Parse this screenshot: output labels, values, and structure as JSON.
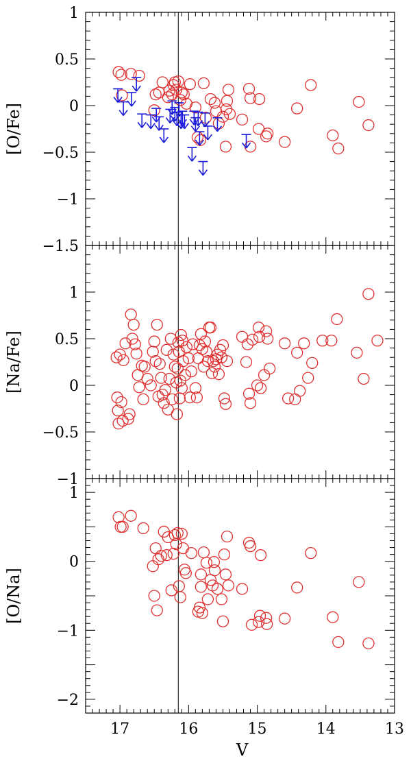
{
  "chart_data": [
    {
      "type": "scatter",
      "panel": "top",
      "ylabel": "[O/Fe]",
      "xlim": [
        17.5,
        13
      ],
      "ylim": [
        -1.5,
        1
      ],
      "y_ticks": [
        {
          "v": 1,
          "label": "1"
        },
        {
          "v": 0.5,
          "label": "0.5"
        },
        {
          "v": 0,
          "label": "0"
        },
        {
          "v": -0.5,
          "label": "−0.5"
        },
        {
          "v": -1,
          "label": "−1"
        },
        {
          "v": -1.5,
          "label": "−1.5"
        }
      ],
      "vline_x": 16.15,
      "grid": false,
      "series": [
        {
          "marker": "open-circle",
          "color": "#e03030",
          "points": [
            [
              17.02,
              0.36
            ],
            [
              16.98,
              0.33
            ],
            [
              16.97,
              0.11
            ],
            [
              16.84,
              0.34
            ],
            [
              16.72,
              0.32
            ],
            [
              16.5,
              -0.05
            ],
            [
              16.48,
              0.12
            ],
            [
              16.43,
              0.14
            ],
            [
              16.38,
              0.25
            ],
            [
              16.3,
              0.09
            ],
            [
              16.28,
              0.16
            ],
            [
              16.24,
              0.12
            ],
            [
              16.22,
              0.22
            ],
            [
              16.2,
              0.25
            ],
            [
              16.18,
              0.17
            ],
            [
              16.15,
              0.26
            ],
            [
              16.12,
              0.06
            ],
            [
              16.1,
              0.14
            ],
            [
              16.07,
              0.12
            ],
            [
              16.03,
              0.02
            ],
            [
              15.98,
              0.23
            ],
            [
              15.9,
              -0.02
            ],
            [
              15.87,
              -0.34
            ],
            [
              15.83,
              -0.37
            ],
            [
              15.78,
              0.24
            ],
            [
              15.75,
              -0.13
            ],
            [
              15.68,
              0.07
            ],
            [
              15.62,
              0.03
            ],
            [
              15.6,
              -0.06
            ],
            [
              15.56,
              -0.19
            ],
            [
              15.5,
              -0.12
            ],
            [
              15.46,
              -0.44
            ],
            [
              15.45,
              -0.04
            ],
            [
              15.44,
              0.05
            ],
            [
              15.42,
              0.17
            ],
            [
              15.4,
              -0.09
            ],
            [
              15.22,
              -0.15
            ],
            [
              15.12,
              0.18
            ],
            [
              15.1,
              0.08
            ],
            [
              15.1,
              -0.44
            ],
            [
              14.98,
              -0.25
            ],
            [
              14.97,
              0.07
            ],
            [
              14.87,
              -0.33
            ],
            [
              14.85,
              -0.3
            ],
            [
              14.6,
              -0.39
            ],
            [
              14.42,
              -0.03
            ],
            [
              14.22,
              0.22
            ],
            [
              13.9,
              -0.32
            ],
            [
              13.82,
              -0.46
            ],
            [
              13.52,
              0.04
            ],
            [
              13.38,
              -0.21
            ]
          ]
        },
        {
          "marker": "upper-limit-arrow",
          "color": "#1a1adc",
          "points": [
            [
              17.03,
              0.18
            ],
            [
              16.95,
              0.04
            ],
            [
              16.83,
              0.14
            ],
            [
              16.76,
              0.3
            ],
            [
              16.68,
              -0.09
            ],
            [
              16.55,
              -0.1
            ],
            [
              16.47,
              -0.03
            ],
            [
              16.43,
              -0.12
            ],
            [
              16.36,
              -0.25
            ],
            [
              16.27,
              -0.04
            ],
            [
              16.24,
              0.05
            ],
            [
              16.2,
              -0.02
            ],
            [
              16.17,
              -0.07
            ],
            [
              16.14,
              0.03
            ],
            [
              16.11,
              -0.1
            ],
            [
              16.09,
              -0.06
            ],
            [
              16.06,
              -0.1
            ],
            [
              15.95,
              -0.45
            ],
            [
              15.92,
              -0.06
            ],
            [
              15.9,
              -0.13
            ],
            [
              15.86,
              -0.07
            ],
            [
              15.84,
              -0.28
            ],
            [
              15.79,
              -0.6
            ],
            [
              15.76,
              -0.08
            ],
            [
              15.72,
              -0.22
            ],
            [
              15.58,
              -0.13
            ],
            [
              15.16,
              -0.31
            ]
          ]
        }
      ]
    },
    {
      "type": "scatter",
      "panel": "middle",
      "ylabel": "[Na/Fe]",
      "xlim": [
        17.5,
        13
      ],
      "ylim": [
        -1,
        1.5
      ],
      "y_ticks": [
        {
          "v": 1,
          "label": "1"
        },
        {
          "v": 0.5,
          "label": "0.5"
        },
        {
          "v": 0,
          "label": "0"
        },
        {
          "v": -0.5,
          "label": "−0.5"
        },
        {
          "v": -1,
          "label": "−1"
        }
      ],
      "vline_x": 16.15,
      "grid": false,
      "series": [
        {
          "marker": "open-circle",
          "color": "#e03030",
          "points": [
            [
              17.05,
              0.3
            ],
            [
              17.04,
              -0.13
            ],
            [
              17.03,
              -0.27
            ],
            [
              17.02,
              -0.41
            ],
            [
              17.0,
              0.33
            ],
            [
              16.98,
              -0.18
            ],
            [
              16.96,
              -0.38
            ],
            [
              16.95,
              0.27
            ],
            [
              16.92,
              0.45
            ],
            [
              16.88,
              -0.36
            ],
            [
              16.86,
              -0.31
            ],
            [
              16.84,
              0.76
            ],
            [
              16.82,
              0.5
            ],
            [
              16.8,
              0.65
            ],
            [
              16.78,
              0.44
            ],
            [
              16.76,
              0.34
            ],
            [
              16.74,
              0.11
            ],
            [
              16.72,
              -0.02
            ],
            [
              16.68,
              0.21
            ],
            [
              16.66,
              -0.15
            ],
            [
              16.64,
              0.2
            ],
            [
              16.6,
              0.07
            ],
            [
              16.55,
              0.0
            ],
            [
              16.52,
              0.36
            ],
            [
              16.5,
              0.47
            ],
            [
              16.48,
              0.26
            ],
            [
              16.46,
              0.65
            ],
            [
              16.44,
              -0.12
            ],
            [
              16.42,
              0.23
            ],
            [
              16.4,
              0.08
            ],
            [
              16.38,
              -0.1
            ],
            [
              16.36,
              -0.19
            ],
            [
              16.34,
              -0.05
            ],
            [
              16.32,
              0.38
            ],
            [
              16.3,
              -0.26
            ],
            [
              16.28,
              0.07
            ],
            [
              16.26,
              0.5
            ],
            [
              16.24,
              -0.15
            ],
            [
              16.22,
              0.33
            ],
            [
              16.2,
              0.2
            ],
            [
              16.18,
              0.03
            ],
            [
              16.17,
              -0.31
            ],
            [
              16.16,
              0.18
            ],
            [
              16.15,
              0.46
            ],
            [
              16.14,
              0.36
            ],
            [
              16.13,
              -0.14
            ],
            [
              16.12,
              0.05
            ],
            [
              16.11,
              0.54
            ],
            [
              16.1,
              -0.03
            ],
            [
              16.09,
              0.48
            ],
            [
              16.08,
              0.26
            ],
            [
              16.05,
              0.11
            ],
            [
              16.03,
              0.41
            ],
            [
              16.0,
              0.29
            ],
            [
              15.98,
              -0.13
            ],
            [
              15.96,
              0.15
            ],
            [
              15.94,
              0.44
            ],
            [
              15.9,
              -0.03
            ],
            [
              15.88,
              -0.13
            ],
            [
              15.86,
              0.29
            ],
            [
              15.84,
              0.43
            ],
            [
              15.82,
              0.55
            ],
            [
              15.8,
              0.39
            ],
            [
              15.78,
              0.2
            ],
            [
              15.76,
              0.47
            ],
            [
              15.74,
              0.36
            ],
            [
              15.72,
              0.26
            ],
            [
              15.7,
              0.62
            ],
            [
              15.68,
              0.62
            ],
            [
              15.66,
              0.13
            ],
            [
              15.64,
              0.26
            ],
            [
              15.62,
              0.2
            ],
            [
              15.6,
              0.28
            ],
            [
              15.58,
              0.33
            ],
            [
              15.56,
              0.12
            ],
            [
              15.54,
              0.38
            ],
            [
              15.52,
              0.3
            ],
            [
              15.5,
              0.43
            ],
            [
              15.48,
              -0.14
            ],
            [
              15.46,
              -0.2
            ],
            [
              15.44,
              0.26
            ],
            [
              15.22,
              0.52
            ],
            [
              15.16,
              0.25
            ],
            [
              15.14,
              0.44
            ],
            [
              15.12,
              -0.09
            ],
            [
              15.1,
              -0.19
            ],
            [
              15.07,
              0.49
            ],
            [
              15.0,
              -0.0
            ],
            [
              14.98,
              0.62
            ],
            [
              14.97,
              0.52
            ],
            [
              14.95,
              -0.03
            ],
            [
              14.9,
              0.11
            ],
            [
              14.87,
              0.58
            ],
            [
              14.85,
              0.5
            ],
            [
              14.82,
              0.18
            ],
            [
              14.6,
              0.45
            ],
            [
              14.55,
              -0.14
            ],
            [
              14.45,
              -0.15
            ],
            [
              14.42,
              0.35
            ],
            [
              14.38,
              -0.06
            ],
            [
              14.32,
              0.45
            ],
            [
              14.26,
              0.08
            ],
            [
              14.2,
              0.24
            ],
            [
              14.05,
              0.48
            ],
            [
              13.92,
              0.48
            ],
            [
              13.84,
              0.71
            ],
            [
              13.55,
              0.35
            ],
            [
              13.45,
              0.07
            ],
            [
              13.38,
              0.98
            ],
            [
              13.25,
              0.48
            ]
          ]
        }
      ]
    },
    {
      "type": "scatter",
      "panel": "bottom",
      "ylabel": "[O/Na]",
      "xlabel": "V",
      "xlim": [
        17.5,
        13
      ],
      "ylim": [
        -2.2,
        1.2
      ],
      "y_ticks": [
        {
          "v": 1,
          "label": "1"
        },
        {
          "v": 0,
          "label": "0"
        },
        {
          "v": -1,
          "label": "−1"
        },
        {
          "v": -2,
          "label": "−2"
        }
      ],
      "x_ticks": [
        {
          "v": 17,
          "label": "17"
        },
        {
          "v": 16,
          "label": "16"
        },
        {
          "v": 15,
          "label": "15"
        },
        {
          "v": 14,
          "label": "14"
        },
        {
          "v": 13,
          "label": "13"
        }
      ],
      "vline_x": 16.15,
      "grid": false,
      "series": [
        {
          "marker": "open-circle",
          "color": "#e03030",
          "points": [
            [
              17.02,
              0.64
            ],
            [
              16.99,
              0.5
            ],
            [
              16.96,
              0.5
            ],
            [
              16.84,
              0.66
            ],
            [
              16.66,
              0.48
            ],
            [
              16.52,
              -0.07
            ],
            [
              16.5,
              -0.5
            ],
            [
              16.48,
              0.19
            ],
            [
              16.46,
              -0.71
            ],
            [
              16.44,
              0.03
            ],
            [
              16.4,
              0.08
            ],
            [
              16.36,
              0.43
            ],
            [
              16.32,
              0.09
            ],
            [
              16.3,
              0.35
            ],
            [
              16.25,
              -0.42
            ],
            [
              16.22,
              0.11
            ],
            [
              16.2,
              0.38
            ],
            [
              16.18,
              0.25
            ],
            [
              16.16,
              0.41
            ],
            [
              16.14,
              -0.36
            ],
            [
              16.12,
              -0.52
            ],
            [
              16.1,
              0.4
            ],
            [
              16.08,
              0.19
            ],
            [
              16.06,
              -0.12
            ],
            [
              16.04,
              -0.17
            ],
            [
              15.96,
              0.12
            ],
            [
              15.86,
              -0.73
            ],
            [
              15.84,
              -0.67
            ],
            [
              15.82,
              -0.19
            ],
            [
              15.82,
              -0.37
            ],
            [
              15.8,
              -0.75
            ],
            [
              15.78,
              0.13
            ],
            [
              15.74,
              -0.02
            ],
            [
              15.72,
              -0.55
            ],
            [
              15.68,
              -0.27
            ],
            [
              15.65,
              -0.35
            ],
            [
              15.63,
              -0.01
            ],
            [
              15.62,
              -0.13
            ],
            [
              15.58,
              -0.4
            ],
            [
              15.52,
              -0.55
            ],
            [
              15.5,
              -0.87
            ],
            [
              15.48,
              0.1
            ],
            [
              15.46,
              -0.19
            ],
            [
              15.44,
              0.36
            ],
            [
              15.42,
              -0.35
            ],
            [
              15.22,
              -0.4
            ],
            [
              15.12,
              0.27
            ],
            [
              15.1,
              0.22
            ],
            [
              15.08,
              -0.92
            ],
            [
              14.98,
              -0.88
            ],
            [
              14.96,
              -0.79
            ],
            [
              14.95,
              0.09
            ],
            [
              14.87,
              -0.82
            ],
            [
              14.86,
              -0.91
            ],
            [
              14.6,
              -0.83
            ],
            [
              14.42,
              -0.38
            ],
            [
              14.22,
              0.12
            ],
            [
              13.9,
              -0.81
            ],
            [
              13.82,
              -1.17
            ],
            [
              13.52,
              -0.3
            ],
            [
              13.38,
              -1.19
            ]
          ]
        }
      ]
    }
  ]
}
